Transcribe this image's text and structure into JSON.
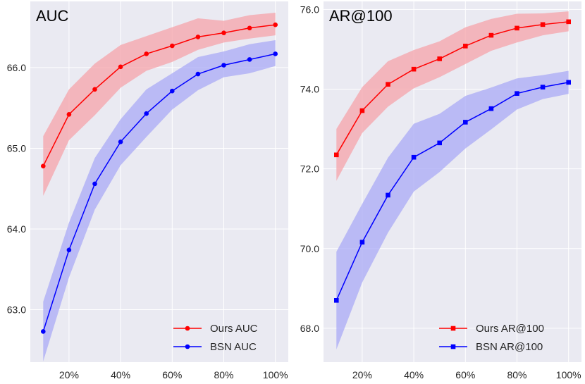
{
  "colors": {
    "background": "#eaeaf2",
    "grid": "#ffffff",
    "ours": "#ff0000",
    "ours_band": "#f5a3aa",
    "bsn": "#0000ff",
    "bsn_band": "#a9a9f6"
  },
  "chart_data": [
    {
      "type": "line",
      "title": "AUC",
      "xlabel": "",
      "ylabel": "",
      "x": [
        10,
        20,
        30,
        40,
        50,
        60,
        70,
        80,
        90,
        100
      ],
      "x_ticks": [
        20,
        40,
        60,
        80,
        100
      ],
      "x_tick_labels": [
        "20%",
        "40%",
        "60%",
        "80%",
        "100%"
      ],
      "xlim": [
        5,
        105
      ],
      "ylim": [
        62.35,
        66.82
      ],
      "y_ticks": [
        63.0,
        64.0,
        65.0,
        66.0
      ],
      "y_tick_labels": [
        "63.0",
        "64.0",
        "65.0",
        "66.0"
      ],
      "marker": "circle",
      "legend_position": "lower-right",
      "series": [
        {
          "name": "Ours AUC",
          "color_key": "ours",
          "values": [
            64.78,
            65.42,
            65.73,
            66.01,
            66.17,
            66.27,
            66.38,
            66.43,
            66.49,
            66.53
          ],
          "upper": [
            65.15,
            65.73,
            66.05,
            66.28,
            66.39,
            66.5,
            66.61,
            66.58,
            66.65,
            66.68
          ],
          "lower": [
            64.41,
            65.1,
            65.41,
            65.75,
            65.96,
            66.07,
            66.22,
            66.31,
            66.36,
            66.4
          ]
        },
        {
          "name": "BSN AUC",
          "color_key": "bsn",
          "values": [
            62.73,
            63.74,
            64.56,
            65.08,
            65.43,
            65.71,
            65.92,
            66.03,
            66.1,
            66.17
          ],
          "upper": [
            63.1,
            64.08,
            64.88,
            65.36,
            65.73,
            65.93,
            66.13,
            66.2,
            66.29,
            66.34
          ],
          "lower": [
            62.36,
            63.4,
            64.24,
            64.79,
            65.14,
            65.48,
            65.72,
            65.88,
            65.93,
            66.02
          ]
        }
      ]
    },
    {
      "type": "line",
      "title": "AR@100",
      "xlabel": "",
      "ylabel": "",
      "x": [
        10,
        20,
        30,
        40,
        50,
        60,
        70,
        80,
        90,
        100
      ],
      "x_ticks": [
        20,
        40,
        60,
        80,
        100
      ],
      "x_tick_labels": [
        "20%",
        "40%",
        "60%",
        "80%",
        "100%"
      ],
      "xlim": [
        5,
        105
      ],
      "ylim": [
        67.15,
        76.2
      ],
      "y_ticks": [
        68.0,
        70.0,
        72.0,
        74.0,
        76.0
      ],
      "y_tick_labels": [
        "68.0",
        "70.0",
        "72.0",
        "74.0",
        "76.0"
      ],
      "marker": "square",
      "legend_position": "lower-right",
      "series": [
        {
          "name": "Ours AR@100",
          "color_key": "ours",
          "values": [
            72.35,
            73.46,
            74.12,
            74.5,
            74.76,
            75.08,
            75.35,
            75.53,
            75.62,
            75.69
          ],
          "upper": [
            73.0,
            74.05,
            74.7,
            74.98,
            75.2,
            75.55,
            75.76,
            75.89,
            75.9,
            75.95
          ],
          "lower": [
            71.7,
            72.9,
            73.56,
            74.02,
            74.3,
            74.63,
            74.96,
            75.17,
            75.35,
            75.45
          ]
        },
        {
          "name": "BSN AR@100",
          "color_key": "bsn",
          "values": [
            68.7,
            70.16,
            71.34,
            72.29,
            72.65,
            73.17,
            73.51,
            73.89,
            74.05,
            74.17
          ],
          "upper": [
            69.92,
            71.12,
            72.28,
            73.13,
            73.38,
            73.83,
            74.04,
            74.27,
            74.35,
            74.46
          ],
          "lower": [
            67.47,
            69.15,
            70.4,
            71.43,
            71.92,
            72.51,
            72.99,
            73.49,
            73.75,
            73.88
          ]
        }
      ]
    }
  ]
}
